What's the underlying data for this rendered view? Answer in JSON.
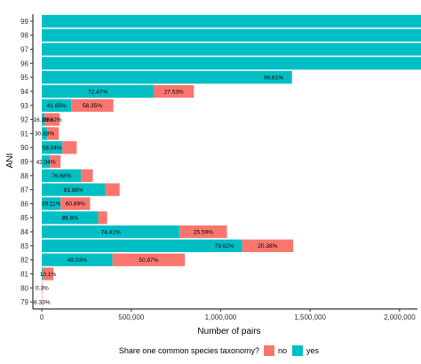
{
  "chart_data": {
    "type": "bar",
    "orientation": "horizontal",
    "stacked": true,
    "xlabel": "Number of pairs",
    "ylabel": "ANI",
    "xlim": [
      -50000,
      2100000
    ],
    "x_ticks": [
      0,
      500000,
      1000000,
      1500000,
      2000000
    ],
    "x_tick_labels": [
      "0",
      "500,000",
      "1,000,000",
      "1,500,000",
      "2,000,000"
    ],
    "grid": false,
    "legend": {
      "title": "Share one common species taxonomy?",
      "position": "bottom",
      "entries": [
        {
          "name": "no",
          "color": "#F8766D"
        },
        {
          "name": "yes",
          "color": "#00BFC4"
        }
      ]
    },
    "categories": [
      "79",
      "80",
      "81",
      "82",
      "83",
      "84",
      "85",
      "86",
      "87",
      "88",
      "89",
      "90",
      "91",
      "92",
      "93",
      "94",
      "95",
      "96",
      "97",
      "98",
      "99"
    ],
    "series": [
      {
        "name": "yes",
        "color": "#00BFC4",
        "values": [
          0,
          0,
          5000,
          395000,
          1120000,
          770000,
          315000,
          105000,
          355000,
          220000,
          45000,
          115000,
          30000,
          15000,
          165000,
          625000,
          1395000,
          2130000,
          2130000,
          2130000,
          2130000
        ]
      },
      {
        "name": "no",
        "color": "#F8766D",
        "values": [
          2000,
          3000,
          60000,
          405000,
          285000,
          265000,
          50000,
          165000,
          80000,
          65000,
          60000,
          80000,
          65000,
          85000,
          235000,
          225000,
          5000,
          0,
          0,
          0,
          0
        ]
      }
    ],
    "labels": [
      {
        "category": "79",
        "items": [
          {
            "text": "8.33%",
            "series": "no"
          }
        ]
      },
      {
        "category": "80",
        "items": [
          {
            "text": "0.3%",
            "series": "no"
          }
        ]
      },
      {
        "category": "81",
        "items": [
          {
            "text": "10.1%",
            "series": "no"
          }
        ]
      },
      {
        "category": "82",
        "items": [
          {
            "text": "49.03%",
            "series": "yes"
          },
          {
            "text": "50.97%",
            "series": "no"
          }
        ]
      },
      {
        "category": "83",
        "items": [
          {
            "text": "79.62%",
            "series": "yes"
          },
          {
            "text": "20.38%",
            "series": "no"
          }
        ]
      },
      {
        "category": "84",
        "items": [
          {
            "text": "74.41%",
            "series": "yes"
          },
          {
            "text": "25.59%",
            "series": "no"
          }
        ]
      },
      {
        "category": "85",
        "items": [
          {
            "text": "86.6%",
            "series": "yes"
          }
        ]
      },
      {
        "category": "86",
        "items": [
          {
            "text": "39.11%",
            "series": "yes"
          },
          {
            "text": "60.89%",
            "series": "no"
          }
        ]
      },
      {
        "category": "87",
        "items": [
          {
            "text": "81.86%",
            "series": "yes"
          }
        ]
      },
      {
        "category": "88",
        "items": [
          {
            "text": "76.68%",
            "series": "yes"
          }
        ]
      },
      {
        "category": "89",
        "items": [
          {
            "text": "42.04%",
            "series": "yes"
          }
        ]
      },
      {
        "category": "90",
        "items": [
          {
            "text": "58.04%",
            "series": "yes"
          }
        ]
      },
      {
        "category": "91",
        "items": [
          {
            "text": "30.68%",
            "series": "yes"
          }
        ]
      },
      {
        "category": "92",
        "items": [
          {
            "text": "16.18%",
            "series": "yes"
          },
          {
            "text": "83.82%",
            "series": "no"
          }
        ]
      },
      {
        "category": "93",
        "items": [
          {
            "text": "41.65%",
            "series": "yes"
          },
          {
            "text": "58.35%",
            "series": "no"
          }
        ]
      },
      {
        "category": "94",
        "items": [
          {
            "text": "72.47%",
            "series": "yes"
          },
          {
            "text": "27.53%",
            "series": "no"
          }
        ]
      },
      {
        "category": "95",
        "items": [
          {
            "text": "99.61%",
            "series": "yes"
          }
        ]
      }
    ]
  }
}
